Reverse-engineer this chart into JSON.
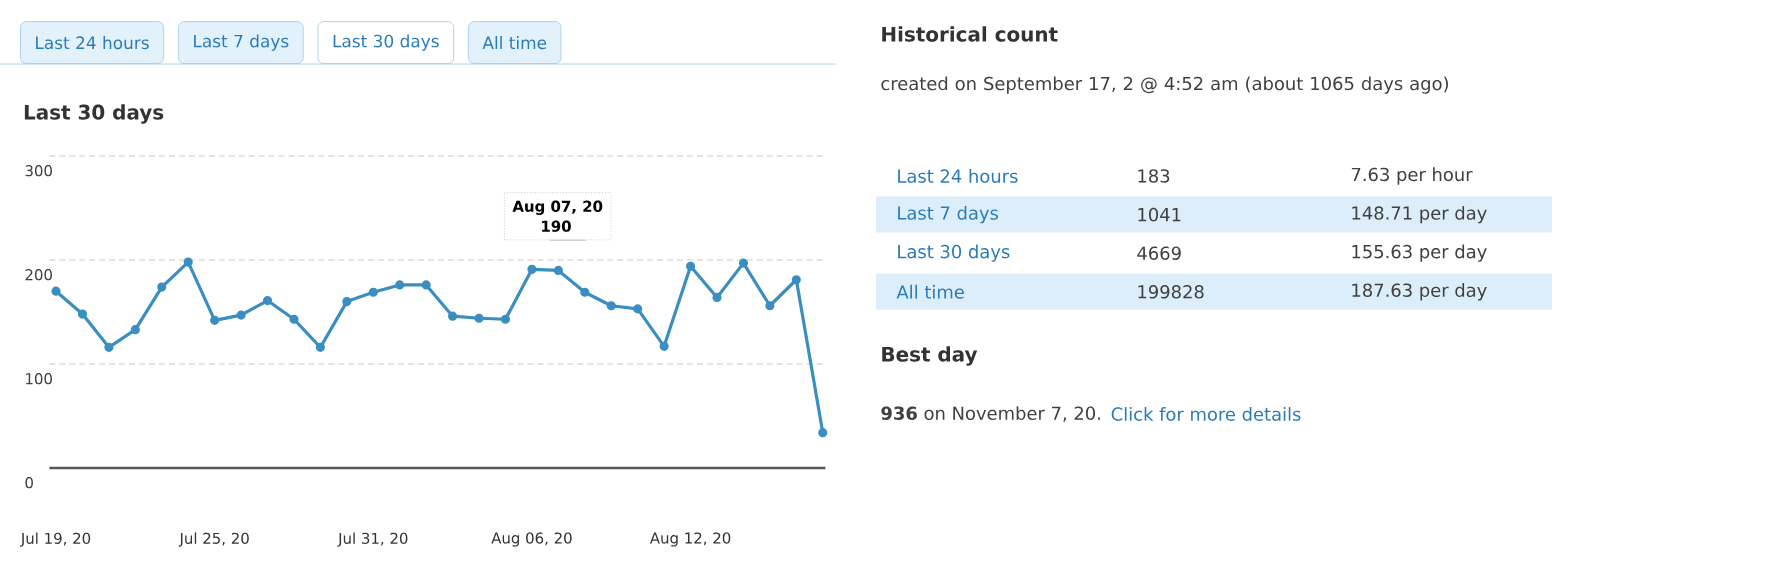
{
  "chart_data": [
    {
      "type": "line",
      "title": "Last 30 days",
      "categories": [
        "Jul 19, 20",
        null,
        null,
        null,
        null,
        null,
        "Jul 25, 20",
        null,
        null,
        null,
        null,
        null,
        "Jul 31, 20",
        null,
        null,
        null,
        null,
        null,
        "Aug 06, 20",
        null,
        null,
        null,
        null,
        null,
        "Aug 12, 20",
        null,
        null,
        null,
        null,
        null
      ],
      "values": [
        170,
        148,
        116,
        133,
        174,
        198,
        142,
        147,
        161,
        143,
        116,
        160,
        169,
        176,
        176,
        146,
        144,
        143,
        191,
        190,
        169,
        156,
        153,
        117,
        194,
        164,
        197,
        156,
        181,
        34
      ],
      "color": "#3a8ec0",
      "ylim": [
        0,
        300
      ],
      "yticks": [
        0,
        100,
        200,
        300
      ],
      "grid": "y",
      "marker": "circle",
      "annotations": [
        "Last 24 hours",
        "Last 7 days",
        "Last 30 days",
        "All time",
        "Aug 07, 20",
        "190"
      ]
    },
    {
      "type": "other",
      "title": "Historical count",
      "annotations": [
        "created on September 17, 2 @ 4:52 am (about 1065 days ago)",
        "Last 24 hours",
        "183",
        "7.63 per hour",
        "Last 7 days",
        "1041",
        "148.71 per day",
        "Last 30 days",
        "4669",
        "155.63 per day",
        "All time",
        "199828",
        "187.63 per day",
        "Best day",
        "**936** on November 7, 20.",
        "Click for more details"
      ]
    }
  ]
}
